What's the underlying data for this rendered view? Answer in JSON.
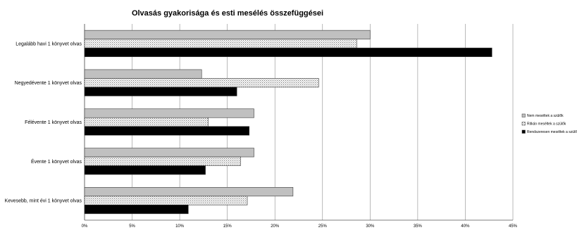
{
  "chart_data": {
    "type": "bar",
    "orientation": "horizontal",
    "title": "Olvasás gyakorisága és esti mesélés összefüggései",
    "xlabel": "",
    "ylabel": "",
    "categories": [
      "Legalább havi 1 könyvet olvas",
      "Negyedévente 1 könyvet olvas",
      "Félévente 1 könyvet olvas",
      "Évente 1 könyvet olvas",
      "Kevesebb, mint évi 1 könyvet olvas"
    ],
    "series": [
      {
        "name": "Nem meséltek a szülők",
        "values": [
          30.0,
          12.3,
          17.8,
          17.8,
          21.9
        ],
        "color": "#c0c0c0",
        "pattern": "solid-gray"
      },
      {
        "name": "Ritkán meséltek a szülők",
        "values": [
          28.6,
          24.6,
          13.0,
          16.4,
          17.1
        ],
        "color": "#e6e6e6",
        "pattern": "dotted"
      },
      {
        "name": "Rendszeresen meséltek a szülők",
        "values": [
          42.8,
          16.0,
          17.3,
          12.7,
          10.9
        ],
        "color": "#000000",
        "pattern": "solid-black"
      }
    ],
    "xlim": [
      0,
      45
    ],
    "ticks": [
      0,
      5,
      10,
      15,
      20,
      25,
      30,
      35,
      40,
      45
    ],
    "tick_labels": [
      "0%",
      "5%",
      "10%",
      "15%",
      "20%",
      "25%",
      "30%",
      "35%",
      "40%",
      "45%"
    ],
    "grid": true,
    "legend_position": "right"
  }
}
